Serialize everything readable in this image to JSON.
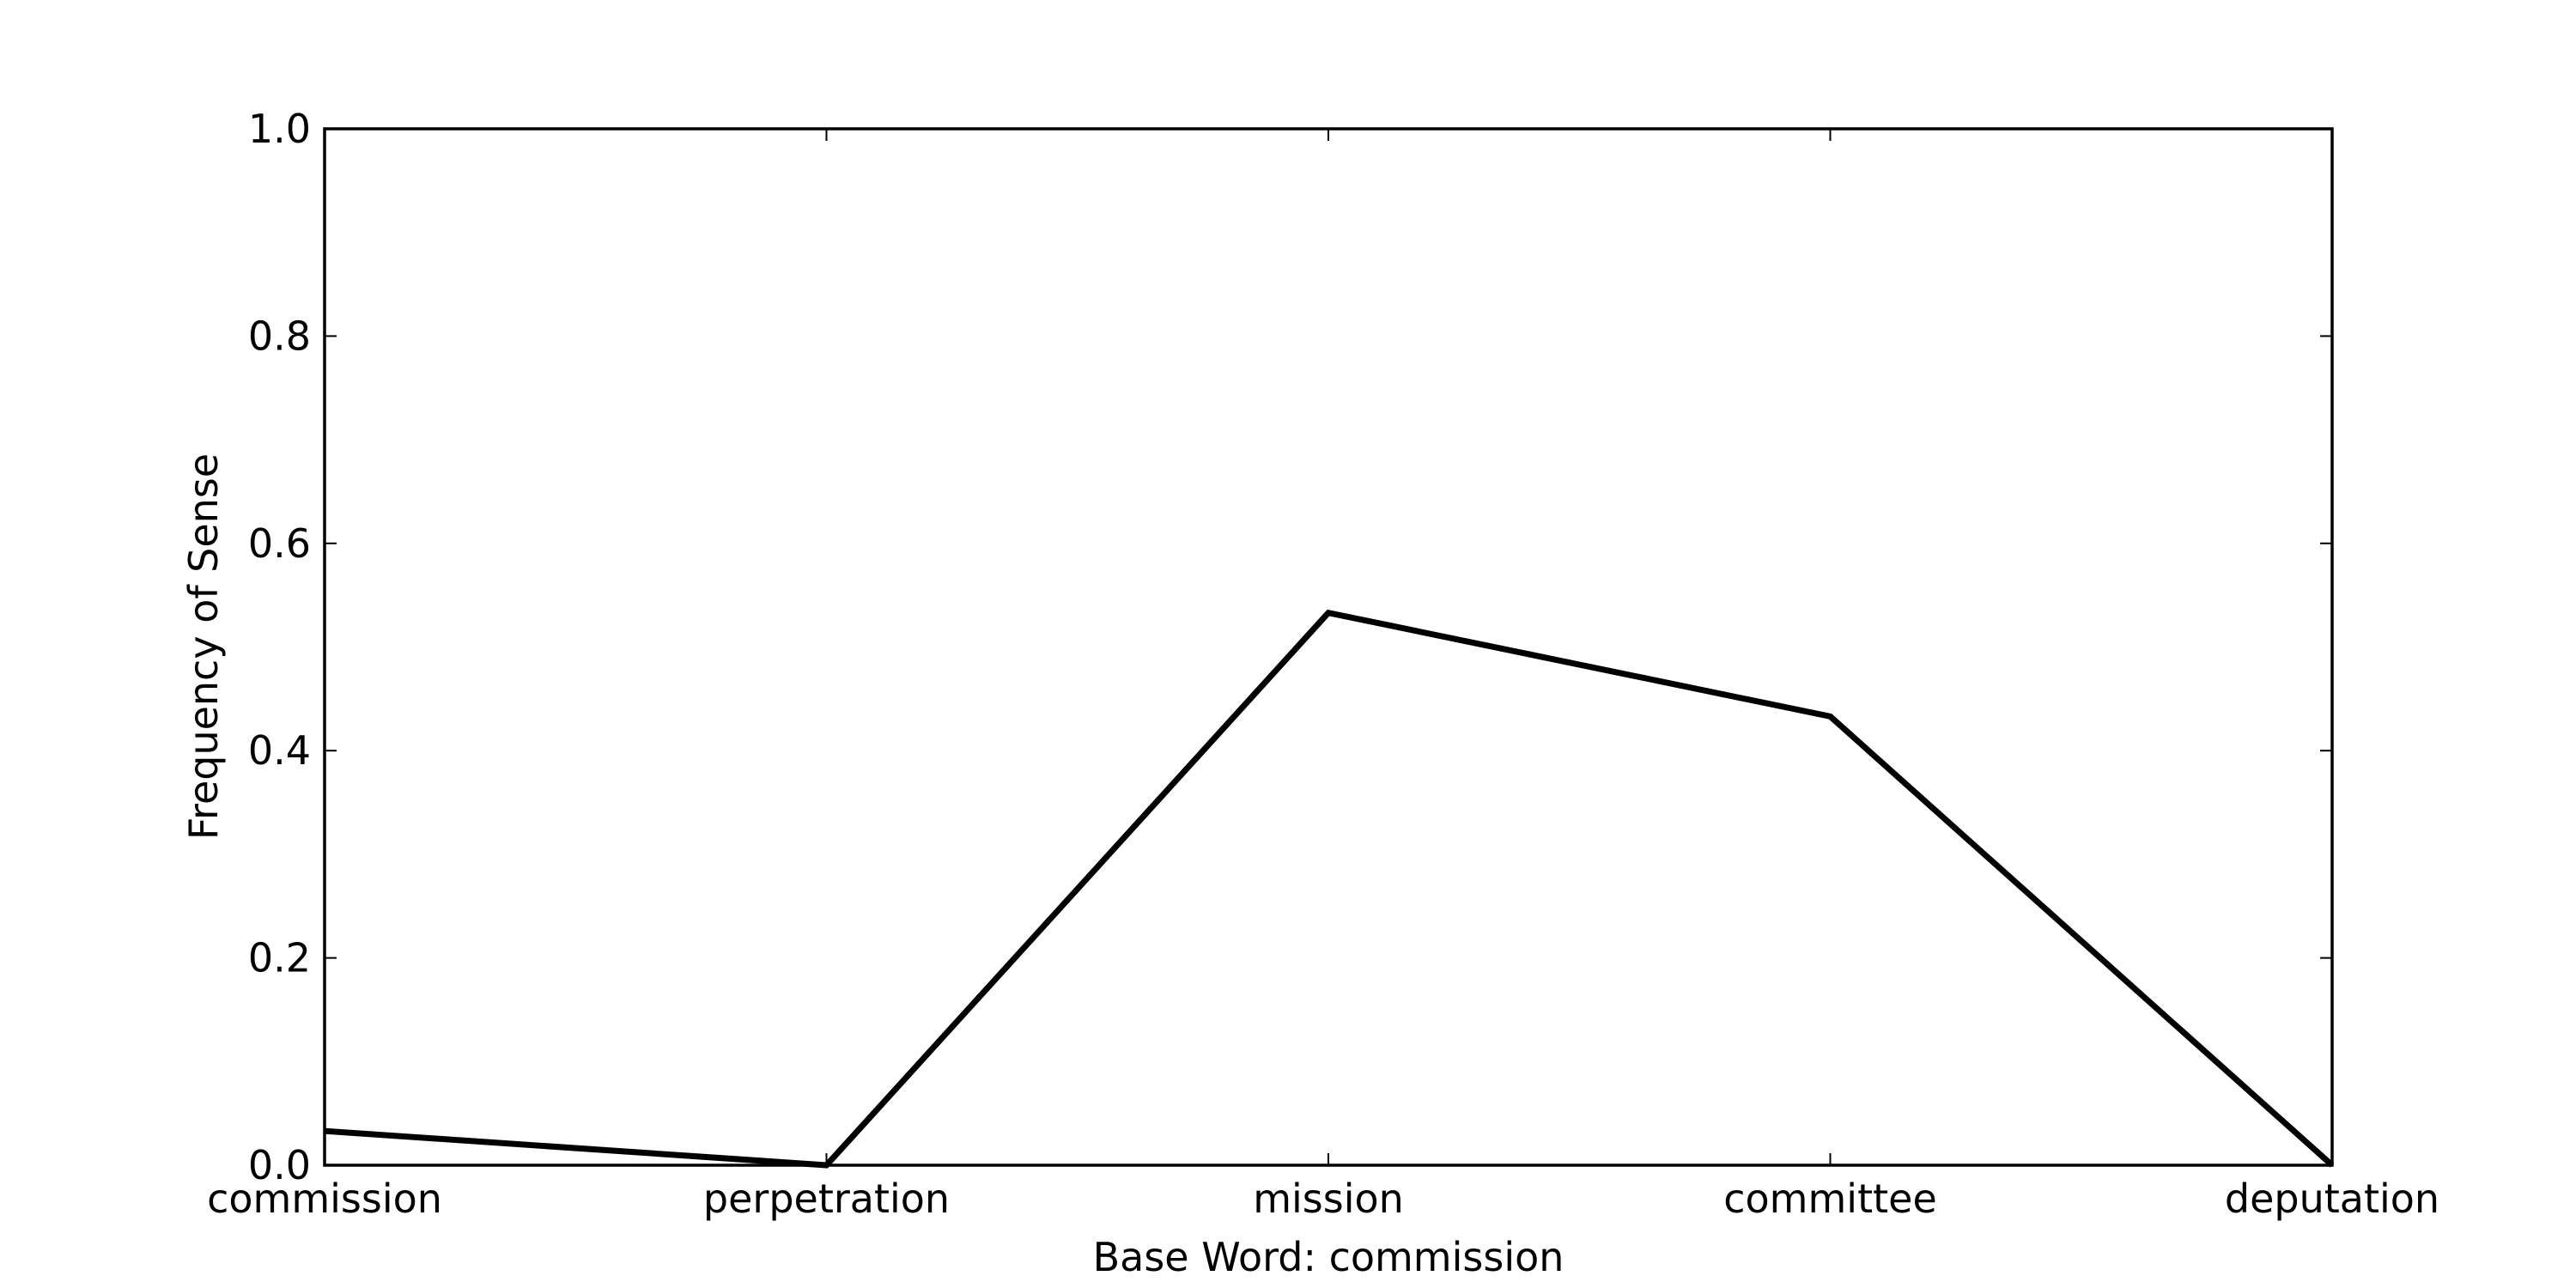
{
  "chart_data": {
    "type": "line",
    "title": "",
    "xlabel": "Base Word: commission",
    "ylabel": "Frequency of Sense",
    "categories": [
      "commission",
      "perpetration",
      "mission",
      "committee",
      "deputation"
    ],
    "series": [
      {
        "values": [
          0.033,
          0.0,
          0.533,
          0.433,
          0.0
        ],
        "color": "#000000"
      }
    ],
    "ylim": [
      0.0,
      1.0
    ],
    "yticks": [
      "0.0",
      "0.2",
      "0.4",
      "0.6",
      "0.8",
      "1.0"
    ],
    "grid": false,
    "legend": "none"
  }
}
